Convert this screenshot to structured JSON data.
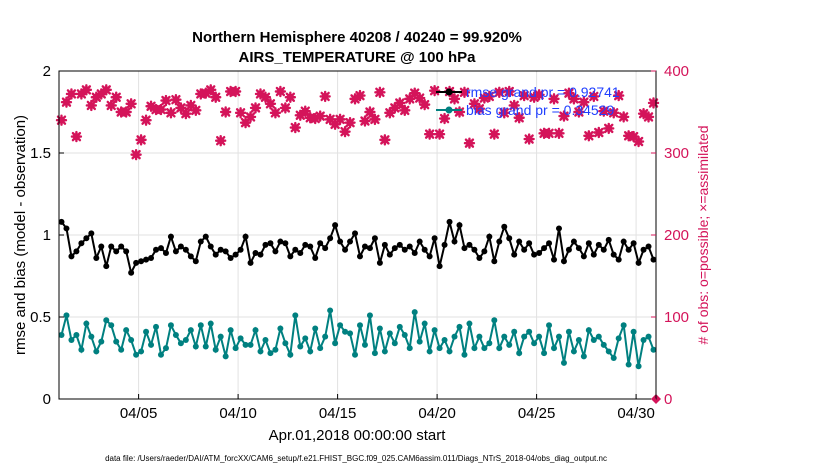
{
  "chart_data": {
    "type": "line",
    "title": [
      "Northern Hemisphere 40208 / 40240 = 99.920%",
      "AIRS_TEMPERATURE @ 100 hPa"
    ],
    "xlabel": "Apr.01,2018 00:00:00 start",
    "ylabel": "rmse and bias (model - observation)",
    "y2label": "# of obs: o=possible; ×=assimilated",
    "footer": "data file: /Users/raeder/DAI/ATM_forcXX/CAM6_setup/f.e21.FHIST_BGC.f09_025.CAM6assim.011/Diags_NTrS_2018-04/obs_diag_output.nc",
    "xlim": [
      1,
      31
    ],
    "ylim": [
      0,
      2
    ],
    "y2lim": [
      0,
      400
    ],
    "xticks": [
      5,
      10,
      15,
      20,
      25,
      30
    ],
    "xticklabels": [
      "04/05",
      "04/10",
      "04/15",
      "04/20",
      "04/25",
      "04/30"
    ],
    "yticks": [
      0,
      0.5,
      1,
      1.5,
      2
    ],
    "yticklabels": [
      "0",
      "0.5",
      "1",
      "1.5",
      "2"
    ],
    "y2ticks": [
      0,
      100,
      200,
      300,
      400
    ],
    "y2ticklabels": [
      "0",
      "100",
      "200",
      "300",
      "400"
    ],
    "grid": true,
    "legend_location": "top-right",
    "colors": {
      "rmse": "#000000",
      "bias": "#008080",
      "obs": "#d4145a",
      "legend_text": "#1f3fff"
    },
    "x": [
      1.125,
      1.375,
      1.625,
      1.875,
      2.125,
      2.375,
      2.625,
      2.875,
      3.125,
      3.375,
      3.625,
      3.875,
      4.125,
      4.375,
      4.625,
      4.875,
      5.125,
      5.375,
      5.625,
      5.875,
      6.125,
      6.375,
      6.625,
      6.875,
      7.125,
      7.375,
      7.625,
      7.875,
      8.125,
      8.375,
      8.625,
      8.875,
      9.125,
      9.375,
      9.625,
      9.875,
      10.125,
      10.375,
      10.625,
      10.875,
      11.125,
      11.375,
      11.625,
      11.875,
      12.125,
      12.375,
      12.625,
      12.875,
      13.125,
      13.375,
      13.625,
      13.875,
      14.125,
      14.375,
      14.625,
      14.875,
      15.125,
      15.375,
      15.625,
      15.875,
      16.125,
      16.375,
      16.625,
      16.875,
      17.125,
      17.375,
      17.625,
      17.875,
      18.125,
      18.375,
      18.625,
      18.875,
      19.125,
      19.375,
      19.625,
      19.875,
      20.125,
      20.375,
      20.625,
      20.875,
      21.125,
      21.375,
      21.625,
      21.875,
      22.125,
      22.375,
      22.625,
      22.875,
      23.125,
      23.375,
      23.625,
      23.875,
      24.125,
      24.375,
      24.625,
      24.875,
      25.125,
      25.375,
      25.625,
      25.875,
      26.125,
      26.375,
      26.625,
      26.875,
      27.125,
      27.375,
      27.625,
      27.875,
      28.125,
      28.375,
      28.625,
      28.875,
      29.125,
      29.375,
      29.625,
      29.875,
      30.125,
      30.375,
      30.625,
      30.875
    ],
    "series": [
      {
        "name": "rmse",
        "legend_label": "rmse grand pr = 0.92741",
        "axis": "left",
        "marker": "dot",
        "values": [
          1.08,
          1.04,
          0.87,
          0.9,
          0.95,
          0.98,
          1.01,
          0.86,
          0.93,
          0.81,
          0.93,
          0.9,
          0.93,
          0.9,
          0.77,
          0.83,
          0.84,
          0.85,
          0.86,
          0.91,
          0.92,
          0.89,
          0.99,
          0.9,
          0.93,
          0.91,
          0.87,
          0.84,
          0.96,
          0.99,
          0.93,
          0.88,
          0.91,
          0.9,
          0.86,
          0.88,
          0.91,
          0.99,
          0.83,
          0.89,
          0.88,
          0.94,
          0.95,
          0.9,
          0.96,
          0.95,
          0.87,
          0.91,
          0.89,
          0.94,
          0.93,
          0.86,
          0.95,
          0.92,
          0.98,
          1.06,
          0.96,
          0.91,
          0.96,
          1.01,
          0.87,
          0.93,
          0.92,
          0.98,
          0.83,
          0.94,
          0.88,
          0.92,
          0.94,
          0.91,
          0.93,
          0.89,
          0.96,
          0.91,
          0.87,
          0.98,
          0.81,
          0.94,
          1.08,
          0.96,
          1.06,
          0.92,
          0.94,
          0.91,
          0.86,
          0.9,
          0.99,
          0.84,
          0.96,
          1.05,
          0.98,
          0.88,
          0.96,
          0.91,
          0.95,
          0.88,
          0.89,
          0.92,
          0.95,
          0.85,
          1.04,
          0.84,
          0.91,
          0.96,
          0.92,
          0.87,
          0.95,
          0.88,
          0.94,
          0.91,
          0.97,
          0.88,
          0.85,
          0.96,
          0.91,
          0.95,
          0.83,
          0.91,
          0.93,
          0.85
        ]
      },
      {
        "name": "bias",
        "legend_label": "bias grand pr = 0.34529",
        "axis": "left",
        "marker": "dot",
        "values": [
          0.39,
          0.51,
          0.36,
          0.39,
          0.3,
          0.46,
          0.38,
          0.29,
          0.35,
          0.48,
          0.45,
          0.35,
          0.3,
          0.42,
          0.36,
          0.27,
          0.29,
          0.41,
          0.33,
          0.44,
          0.27,
          0.31,
          0.45,
          0.39,
          0.34,
          0.36,
          0.42,
          0.32,
          0.45,
          0.32,
          0.46,
          0.3,
          0.38,
          0.26,
          0.42,
          0.31,
          0.37,
          0.33,
          0.33,
          0.42,
          0.29,
          0.36,
          0.28,
          0.3,
          0.43,
          0.34,
          0.27,
          0.51,
          0.32,
          0.37,
          0.29,
          0.43,
          0.31,
          0.38,
          0.54,
          0.34,
          0.45,
          0.41,
          0.4,
          0.27,
          0.45,
          0.33,
          0.51,
          0.28,
          0.43,
          0.29,
          0.4,
          0.34,
          0.44,
          0.39,
          0.31,
          0.53,
          0.35,
          0.46,
          0.29,
          0.42,
          0.31,
          0.36,
          0.29,
          0.38,
          0.44,
          0.27,
          0.46,
          0.31,
          0.38,
          0.31,
          0.34,
          0.48,
          0.31,
          0.38,
          0.33,
          0.41,
          0.28,
          0.38,
          0.41,
          0.34,
          0.38,
          0.28,
          0.45,
          0.31,
          0.38,
          0.22,
          0.41,
          0.29,
          0.36,
          0.26,
          0.42,
          0.36,
          0.38,
          0.33,
          0.29,
          0.25,
          0.37,
          0.45,
          0.21,
          0.41,
          0.2,
          0.36,
          0.38,
          0.3
        ]
      },
      {
        "name": "obs_assimilated",
        "axis": "right",
        "marker": "x",
        "values": [
          340,
          362,
          372,
          320,
          372,
          377,
          358,
          368,
          372,
          377,
          358,
          368,
          350,
          350,
          360,
          298,
          316,
          340,
          357,
          353,
          353,
          364,
          349,
          365,
          355,
          348,
          358,
          352,
          372,
          373,
          377,
          368,
          315,
          350,
          375,
          375,
          349,
          337,
          344,
          355,
          372,
          368,
          360,
          349,
          375,
          355,
          368,
          331,
          346,
          351,
          343,
          342,
          345,
          369,
          341,
          335,
          341,
          326,
          337,
          366,
          370,
          339,
          350,
          341,
          374,
          316,
          349,
          355,
          361,
          352,
          366,
          373,
          367,
          359,
          323,
          376,
          323,
          342,
          375,
          366,
          350,
          374,
          312,
          360,
          354,
          367,
          369,
          323,
          374,
          349,
          375,
          358,
          343,
          370,
          317,
          368,
          371,
          324,
          324,
          366,
          324,
          345,
          373,
          366,
          350,
          362,
          321,
          369,
          325,
          351,
          330,
          349,
          370,
          344,
          321,
          320,
          314,
          348,
          344,
          361
        ]
      },
      {
        "name": "obs_possible",
        "axis": "right",
        "marker": "o",
        "values": [
          340,
          362,
          372,
          320,
          372,
          377,
          358,
          368,
          372,
          377,
          358,
          368,
          350,
          350,
          360,
          298,
          316,
          340,
          357,
          353,
          353,
          364,
          349,
          365,
          355,
          348,
          358,
          352,
          372,
          373,
          377,
          368,
          315,
          350,
          375,
          375,
          349,
          337,
          344,
          355,
          372,
          368,
          360,
          349,
          375,
          355,
          368,
          331,
          346,
          351,
          343,
          342,
          345,
          369,
          341,
          335,
          341,
          326,
          337,
          366,
          370,
          339,
          350,
          341,
          374,
          316,
          349,
          355,
          361,
          352,
          366,
          373,
          367,
          359,
          323,
          376,
          323,
          342,
          375,
          366,
          350,
          374,
          312,
          360,
          354,
          367,
          369,
          323,
          374,
          349,
          375,
          358,
          343,
          370,
          317,
          368,
          371,
          324,
          324,
          366,
          324,
          345,
          373,
          366,
          350,
          362,
          321,
          369,
          325,
          351,
          330,
          349,
          370,
          344,
          321,
          320,
          314,
          348,
          344,
          361
        ]
      }
    ]
  }
}
